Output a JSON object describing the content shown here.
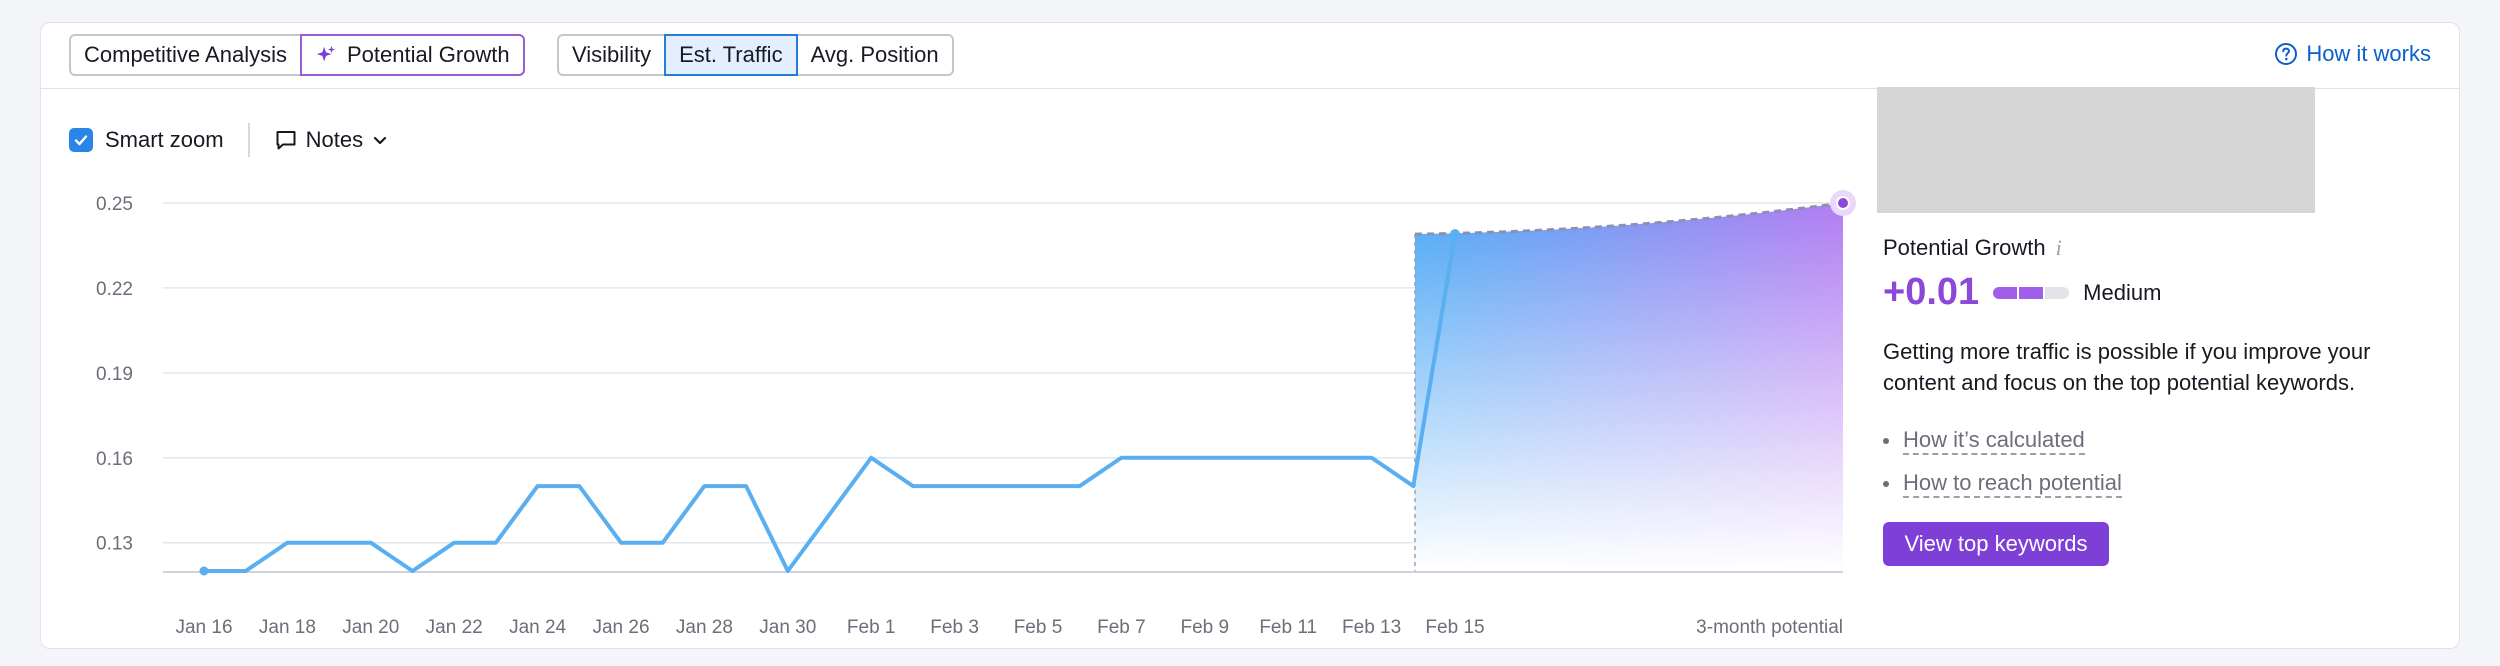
{
  "toolbar": {
    "group1": [
      "Competitive Analysis",
      "Potential Growth"
    ],
    "group2": [
      "Visibility",
      "Est. Traffic",
      "Avg. Position"
    ],
    "selected_group2": "Est. Traffic",
    "how_it_works": "How it works"
  },
  "controls": {
    "smart_zoom_label": "Smart zoom",
    "smart_zoom_checked": true,
    "notes_label": "Notes"
  },
  "chart_data": {
    "type": "line",
    "x": [
      "Jan 16",
      "Jan 17",
      "Jan 18",
      "Jan 19",
      "Jan 20",
      "Jan 21",
      "Jan 22",
      "Jan 23",
      "Jan 24",
      "Jan 25",
      "Jan 26",
      "Jan 27",
      "Jan 28",
      "Jan 29",
      "Jan 30",
      "Jan 31",
      "Feb 1",
      "Feb 2",
      "Feb 3",
      "Feb 4",
      "Feb 5",
      "Feb 6",
      "Feb 7",
      "Feb 8",
      "Feb 9",
      "Feb 10",
      "Feb 11",
      "Feb 12",
      "Feb 13",
      "Feb 14",
      "Feb 15"
    ],
    "series": [
      {
        "values": [
          0.12,
          0.12,
          0.13,
          0.13,
          0.13,
          0.12,
          0.13,
          0.13,
          0.15,
          0.15,
          0.13,
          0.13,
          0.15,
          0.15,
          0.12,
          0.14,
          0.16,
          0.15,
          0.15,
          0.15,
          0.15,
          0.15,
          0.16,
          0.16,
          0.16,
          0.16,
          0.16,
          0.16,
          0.16,
          0.15,
          0.239
        ]
      }
    ],
    "potential": {
      "start": 0.239,
      "end": 0.25,
      "label": "3-month potential"
    },
    "tick_labels_x": [
      "Jan 16",
      "Jan 18",
      "Jan 20",
      "Jan 22",
      "Jan 24",
      "Jan 26",
      "Jan 28",
      "Jan 30",
      "Feb 1",
      "Feb 3",
      "Feb 5",
      "Feb 7",
      "Feb 9",
      "Feb 11",
      "Feb 13",
      "Feb 15"
    ],
    "yticks": [
      0.13,
      0.16,
      0.19,
      0.22,
      0.25
    ],
    "ytick_labels": [
      "0.13",
      "0.16",
      "0.19",
      "0.22",
      "0.25"
    ],
    "ylim": [
      0.12,
      0.25
    ],
    "grid": true,
    "colors": {
      "line": "#5aaff0",
      "potential": "#9a5bd9",
      "grid": "#e4e6eb"
    }
  },
  "side": {
    "title": "Potential Growth",
    "value": "+0.01",
    "meter_level": 2,
    "meter_total": 3,
    "level_label": "Medium",
    "description": "Getting more traffic is possible if you improve your content and focus on the top potential keywords.",
    "links": [
      "How it’s calculated",
      "How to reach potential"
    ],
    "cta": "View top keywords"
  }
}
